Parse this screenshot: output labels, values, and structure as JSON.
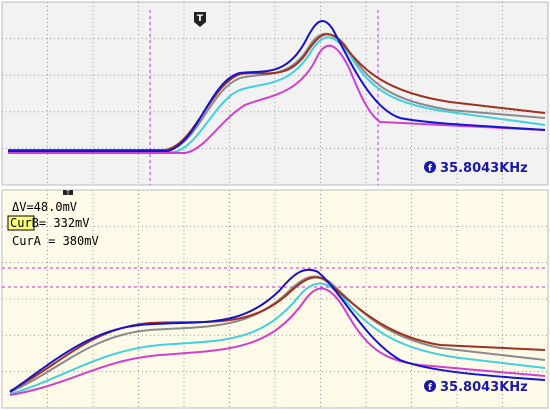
{
  "top_panel": {
    "trigger_marker": "T",
    "frequency": "35.8043KHz"
  },
  "bottom_panel": {
    "trigger_marker": "T",
    "readouts": [
      {
        "label": "ΔV",
        "value": "=48.0mV"
      },
      {
        "label": "CurB",
        "value": "= 332mV"
      },
      {
        "label": "CurA",
        "value": " = 380mV"
      }
    ],
    "frequency": "35.8043KHz"
  }
}
